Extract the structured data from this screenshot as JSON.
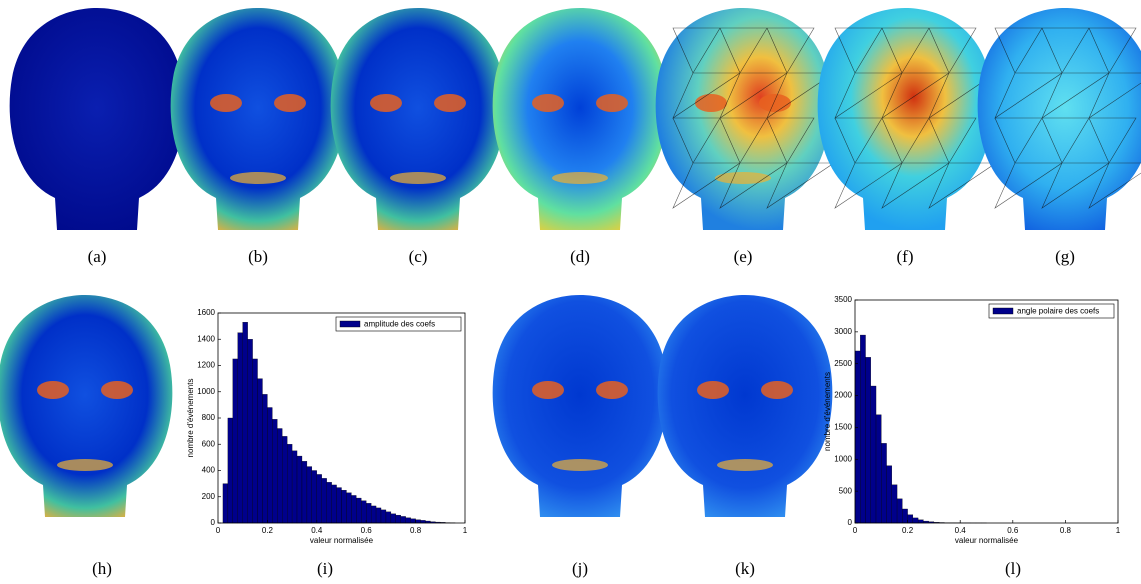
{
  "panel_labels": [
    "(a)",
    "(b)",
    "(c)",
    "(d)",
    "(e)",
    "(f)",
    "(g)",
    "(h)",
    "(i)",
    "(j)",
    "(k)",
    "(l)"
  ],
  "chart_data": [
    {
      "type": "histogram",
      "x_label": "valeur normalisée",
      "y_label": "nombre d'événements",
      "bins": [
        0,
        0.02,
        0.04,
        0.06,
        0.08,
        0.1,
        0.12,
        0.14,
        0.16,
        0.18,
        0.2,
        0.22,
        0.24,
        0.26,
        0.28,
        0.3,
        0.32,
        0.34,
        0.36,
        0.38,
        0.4,
        0.42,
        0.44,
        0.46,
        0.48,
        0.5,
        0.52,
        0.54,
        0.56,
        0.58,
        0.6,
        0.62,
        0.64,
        0.66,
        0.68,
        0.7,
        0.72,
        0.74,
        0.76,
        0.78,
        0.8,
        0.82,
        0.84,
        0.86,
        0.88,
        0.9,
        0.92,
        0.94,
        0.96
      ],
      "series": [
        {
          "name": "amplitude des coefs",
          "color": "#00008b",
          "values": [
            0,
            300,
            800,
            1250,
            1450,
            1530,
            1400,
            1250,
            1100,
            980,
            880,
            790,
            720,
            660,
            600,
            550,
            510,
            470,
            430,
            400,
            370,
            340,
            310,
            290,
            270,
            250,
            230,
            210,
            190,
            170,
            150,
            130,
            115,
            100,
            85,
            70,
            60,
            50,
            40,
            32,
            25,
            20,
            15,
            10,
            7,
            5,
            3,
            2
          ]
        }
      ],
      "xlim": [
        0,
        1
      ],
      "xticks": [
        0,
        0.2,
        0.4,
        0.6,
        0.8,
        1
      ],
      "ylim": [
        0,
        1600
      ],
      "yticks": [
        0,
        200,
        400,
        600,
        800,
        1000,
        1200,
        1400,
        1600
      ],
      "legend": "upper right"
    },
    {
      "type": "histogram",
      "x_label": "valeur normalisée",
      "y_label": "nombre d'événements",
      "bins": [
        0,
        0.02,
        0.04,
        0.06,
        0.08,
        0.1,
        0.12,
        0.14,
        0.16,
        0.18,
        0.2,
        0.22,
        0.24,
        0.26,
        0.28,
        0.3,
        0.32,
        0.34,
        0.36,
        0.38,
        0.4,
        0.42,
        0.44,
        0.46,
        0.48,
        0.5
      ],
      "series": [
        {
          "name": "angle polaire des coefs",
          "color": "#00008b",
          "values": [
            2700,
            2950,
            2600,
            2150,
            1700,
            1250,
            900,
            600,
            380,
            220,
            130,
            80,
            50,
            30,
            20,
            12,
            8,
            5,
            4,
            3,
            2,
            2,
            1,
            1,
            1
          ]
        }
      ],
      "xlim": [
        0,
        1
      ],
      "xticks": [
        0,
        0.2,
        0.4,
        0.6,
        0.8,
        1
      ],
      "ylim": [
        0,
        3500
      ],
      "yticks": [
        0,
        500,
        1000,
        1500,
        2000,
        2500,
        3000,
        3500
      ],
      "legend": "upper right"
    }
  ]
}
